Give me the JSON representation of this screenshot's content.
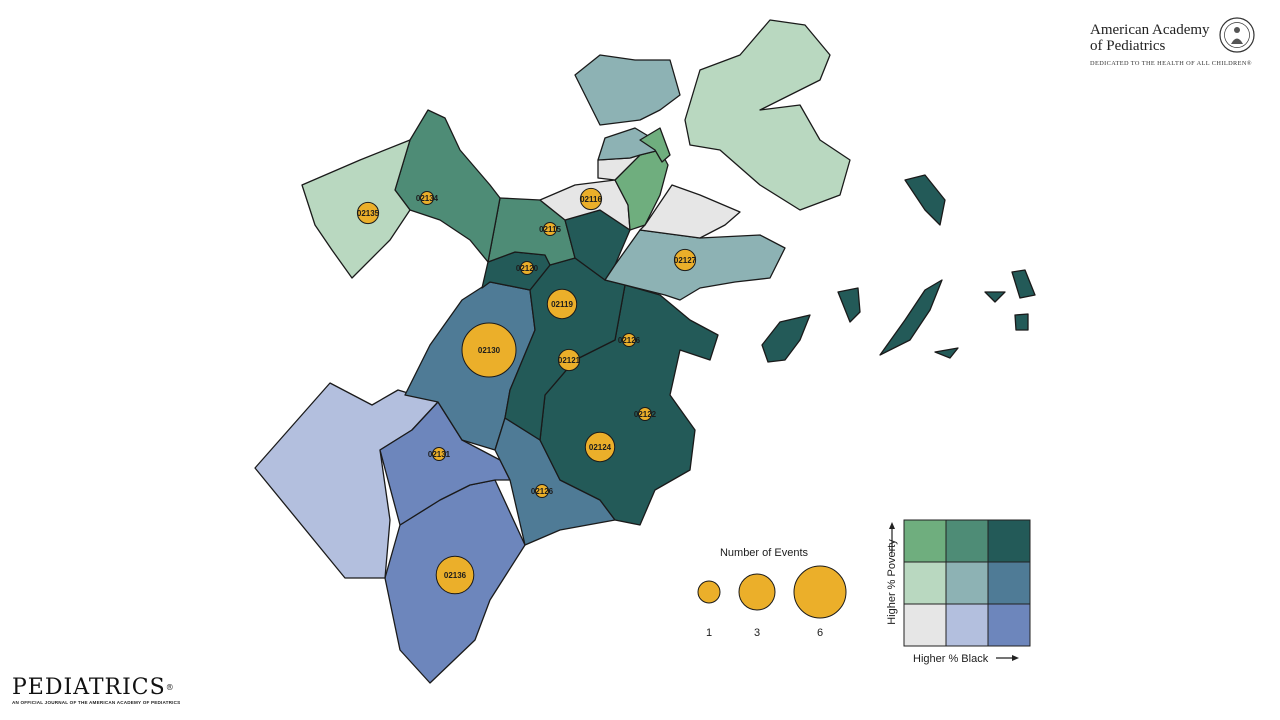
{
  "header": {
    "org_name_line1": "American Academy",
    "org_name_line2": "of Pediatrics",
    "tagline": "DEDICATED TO THE HEALTH OF ALL CHILDREN®",
    "seal_icon": "aap-seal-icon"
  },
  "footer": {
    "journal_name": "PEDIATRICS",
    "registered_mark": "®",
    "journal_tagline": "AN OFFICIAL JOURNAL OF THE AMERICAN ACADEMY OF PEDIATRICS"
  },
  "map": {
    "zip_markers": [
      {
        "zip": "02135",
        "events": 2
      },
      {
        "zip": "02134",
        "events": 1
      },
      {
        "zip": "02115",
        "events": 1
      },
      {
        "zip": "02116",
        "events": 2
      },
      {
        "zip": "02120",
        "events": 1
      },
      {
        "zip": "02127",
        "events": 2
      },
      {
        "zip": "02119",
        "events": 3
      },
      {
        "zip": "02126",
        "events": 1
      },
      {
        "zip": "02130",
        "events": 6
      },
      {
        "zip": "02121",
        "events": 2
      },
      {
        "zip": "02122",
        "events": 1
      },
      {
        "zip": "02124",
        "events": 3
      },
      {
        "zip": "02131",
        "events": 1
      },
      {
        "zip": "02126",
        "events": 1
      },
      {
        "zip": "02136",
        "events": 4
      }
    ],
    "marker_color": "#EBAF2A"
  },
  "size_legend": {
    "title": "Number of Events",
    "items": [
      {
        "label": "1",
        "events": 1
      },
      {
        "label": "3",
        "events": 3
      },
      {
        "label": "6",
        "events": 6
      }
    ]
  },
  "bivariate_legend": {
    "y_label": "Higher % Poverty",
    "x_label": "Higher % Black",
    "colors_by_row_top_to_bottom": [
      [
        "#6FAE7E",
        "#4E8C76",
        "#235A58"
      ],
      [
        "#B9D8C0",
        "#8DB2B4",
        "#4F7B96"
      ],
      [
        "#E6E6E6",
        "#B3BFDE",
        "#6D86BC"
      ]
    ]
  }
}
